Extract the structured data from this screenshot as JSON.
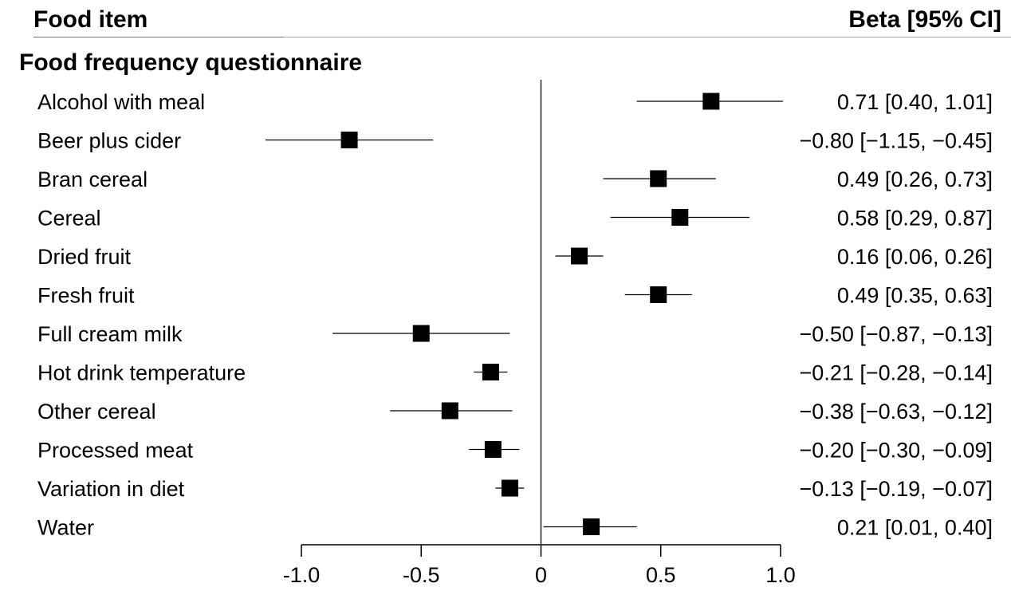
{
  "header": {
    "left": "Food item",
    "right": "Beta [95% CI]"
  },
  "section": {
    "title": "Food frequency questionnaire"
  },
  "chart_data": {
    "type": "forest",
    "xlim": [
      -1.0,
      1.0
    ],
    "x_ticks": [
      -1.0,
      -0.5,
      0,
      0.5,
      1.0
    ],
    "x_tick_labels": [
      "-1.0",
      "-0.5",
      "0",
      "0.5",
      "1.0"
    ],
    "reference_line": 0,
    "rows": [
      {
        "label": "Alcohol with meal",
        "beta": 0.71,
        "lo": 0.4,
        "hi": 1.01,
        "text": "0.71 [0.40, 1.01]"
      },
      {
        "label": "Beer plus cider",
        "beta": -0.8,
        "lo": -1.15,
        "hi": -0.45,
        "text": "−0.80 [−1.15, −0.45]"
      },
      {
        "label": "Bran cereal",
        "beta": 0.49,
        "lo": 0.26,
        "hi": 0.73,
        "text": "0.49 [0.26, 0.73]"
      },
      {
        "label": "Cereal",
        "beta": 0.58,
        "lo": 0.29,
        "hi": 0.87,
        "text": "0.58 [0.29, 0.87]"
      },
      {
        "label": "Dried fruit",
        "beta": 0.16,
        "lo": 0.06,
        "hi": 0.26,
        "text": "0.16 [0.06, 0.26]"
      },
      {
        "label": "Fresh fruit",
        "beta": 0.49,
        "lo": 0.35,
        "hi": 0.63,
        "text": "0.49 [0.35, 0.63]"
      },
      {
        "label": "Full cream milk",
        "beta": -0.5,
        "lo": -0.87,
        "hi": -0.13,
        "text": "−0.50 [−0.87, −0.13]"
      },
      {
        "label": "Hot drink temperature",
        "beta": -0.21,
        "lo": -0.28,
        "hi": -0.14,
        "text": "−0.21 [−0.28, −0.14]"
      },
      {
        "label": "Other cereal",
        "beta": -0.38,
        "lo": -0.63,
        "hi": -0.12,
        "text": "−0.38 [−0.63, −0.12]"
      },
      {
        "label": "Processed meat",
        "beta": -0.2,
        "lo": -0.3,
        "hi": -0.09,
        "text": "−0.20 [−0.30, −0.09]"
      },
      {
        "label": "Variation in diet",
        "beta": -0.13,
        "lo": -0.19,
        "hi": -0.07,
        "text": "−0.13 [−0.19, −0.07]"
      },
      {
        "label": "Water",
        "beta": 0.21,
        "lo": 0.01,
        "hi": 0.4,
        "text": "0.21 [0.01, 0.40]"
      }
    ]
  }
}
